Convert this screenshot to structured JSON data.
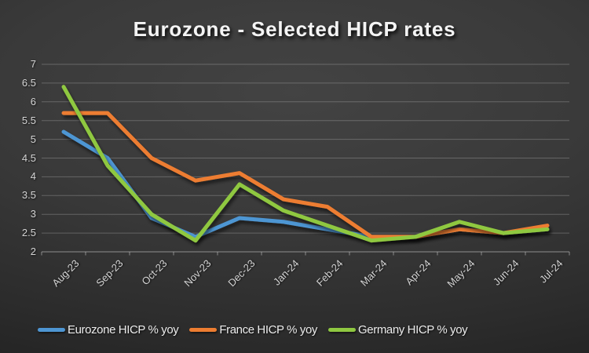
{
  "chart_data": {
    "type": "line",
    "title": "Eurozone - Selected HICP rates",
    "categories": [
      "Aug-23",
      "Sep-23",
      "Oct-23",
      "Nov-23",
      "Dec-23",
      "Jan-24",
      "Feb-24",
      "Mar-24",
      "Apr-24",
      "May-24",
      "Jun-24",
      "Jul-24"
    ],
    "series": [
      {
        "name": "Eurozone HICP % yoy",
        "color": "#4E96D3",
        "values": [
          5.2,
          4.5,
          2.9,
          2.4,
          2.9,
          2.8,
          2.6,
          2.4,
          2.4,
          2.6,
          2.5,
          2.6
        ]
      },
      {
        "name": "France HICP % yoy",
        "color": "#ED7D31",
        "values": [
          5.7,
          5.7,
          4.5,
          3.9,
          4.1,
          3.4,
          3.2,
          2.4,
          2.4,
          2.6,
          2.5,
          2.7
        ]
      },
      {
        "name": "Germany HICP % yoy",
        "color": "#8FC841",
        "values": [
          6.4,
          4.3,
          3.0,
          2.3,
          3.8,
          3.1,
          2.7,
          2.3,
          2.4,
          2.8,
          2.5,
          2.6
        ]
      }
    ],
    "xlabel": "",
    "ylabel": "",
    "ylim": [
      2,
      7
    ],
    "yticks": [
      7,
      6.5,
      6,
      5.5,
      5,
      4.5,
      4,
      3.5,
      3,
      2.5,
      2
    ],
    "grid": true,
    "legend_position": "bottom",
    "colors": {
      "background_center": "#424242",
      "background_edge": "#1d1d1d",
      "axis_text": "#D4D4D4",
      "gridline": "rgba(216,216,216,0.28)",
      "axis_line": "rgba(216,216,216,0.45)",
      "title_text": "#F4F4F4"
    }
  }
}
